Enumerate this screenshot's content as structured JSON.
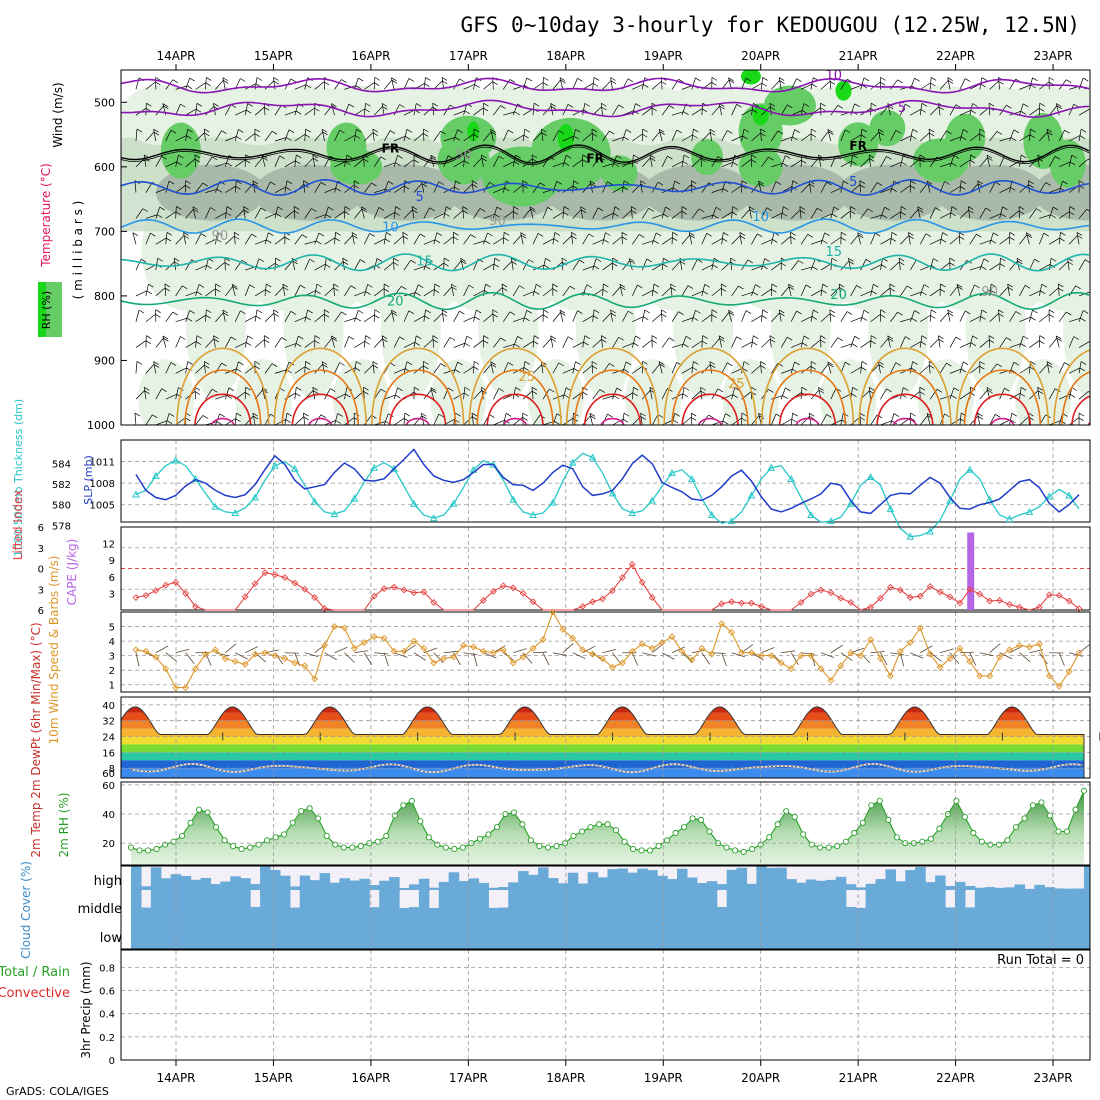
{
  "title": "GFS 0~10day 3-hourly for KEDOUGOU (12.25W, 12.5N)",
  "credit": "GrADS: COLA/IGES",
  "run_total_label": "Run Total = 0",
  "dates": [
    "14APR",
    "15APR",
    "16APR",
    "17APR",
    "18APR",
    "19APR",
    "20APR",
    "21APR",
    "22APR",
    "23APR"
  ],
  "colors": {
    "frame": "#000000",
    "grid": "#9a9a9a",
    "rh_light": "#e6f2e4",
    "rh_mid": "#c3d9c2",
    "rh_dark": "#a9b9aa",
    "rh_green": "#66cc66",
    "rh_bright": "#18d818",
    "wind_purple": "#8a14b4",
    "temp_blue1": "#1e50d2",
    "temp_blue2": "#2896e6",
    "temp_teal": "#1eb4aa",
    "temp_green": "#14aa78",
    "temp_gold": "#dca032",
    "temp_orange": "#e67814",
    "temp_red": "#dc1e1e",
    "temp_magenta": "#d21e82",
    "slp": "#1e3cc8",
    "thickness": "#28c8c8",
    "lifted_index": "#e64646",
    "cape": "#b464e6",
    "wind10m": "#dc9628",
    "barb": "#5a4632",
    "rh2m": "#28a028",
    "cloud": "#6aaad8",
    "precip_conv": "#e02828",
    "precip_total": "#28a028"
  },
  "chart_data": [
    {
      "panel": "upper_air",
      "type": "heatmap",
      "ylabel_wind": "Wind (m/s)",
      "ylabel_temp": "Temperature (°C)",
      "ylabel_rh": "RH (%)",
      "ylabel_pressure": "( m i l l i b a r s )",
      "yticks": [
        500,
        600,
        700,
        800,
        900,
        1000
      ],
      "ylim": [
        450,
        1000
      ],
      "contour_labels": [
        {
          "text": "10",
          "day": 6.75,
          "p": 465
        },
        {
          "text": "5",
          "day": 7.45,
          "p": 515
        },
        {
          "text": "FR",
          "day": 2.2,
          "p": 578
        },
        {
          "text": "FR",
          "day": 4.3,
          "p": 593
        },
        {
          "text": "FR",
          "day": 7.0,
          "p": 574
        },
        {
          "text": "5",
          "day": 2.5,
          "p": 653
        },
        {
          "text": "5",
          "day": 6.95,
          "p": 630
        },
        {
          "text": "10",
          "day": 2.2,
          "p": 700
        },
        {
          "text": "10",
          "day": 6.0,
          "p": 684
        },
        {
          "text": "15",
          "day": 2.55,
          "p": 753
        },
        {
          "text": "15",
          "day": 6.75,
          "p": 738
        },
        {
          "text": "20",
          "day": 2.25,
          "p": 815
        },
        {
          "text": "20",
          "day": 6.8,
          "p": 805
        },
        {
          "text": "25",
          "day": 3.6,
          "p": 932
        },
        {
          "text": "25",
          "day": 5.75,
          "p": 943
        },
        {
          "text": "50",
          "day": 2.95,
          "p": 589
        },
        {
          "text": "90",
          "day": 0.45,
          "p": 713
        },
        {
          "text": "90",
          "day": 3.3,
          "p": 690
        },
        {
          "text": "90",
          "day": 8.35,
          "p": 800
        }
      ]
    },
    {
      "panel": "slp_thickness",
      "type": "line",
      "ylabel_left": "1000-500mb Thickness (dm)",
      "ylabel_right": "SLP (mb)",
      "left_ticks": [
        578,
        580,
        582,
        584
      ],
      "right_ticks": [
        1005,
        1008,
        1011
      ],
      "ylim": [
        1002.6,
        1014.0
      ],
      "slp": [
        1009.2,
        1007.0,
        1006.0,
        1005.7,
        1006.3,
        1007.6,
        1008.5,
        1008.0,
        1007.0,
        1006.3,
        1006.0,
        1006.4,
        1007.8,
        1009.9,
        1011.8,
        1010.6,
        1008.4,
        1007.2,
        1007.5,
        1007.8,
        1009.5,
        1010.8,
        1010.0,
        1008.4,
        1008.3,
        1008.6,
        1010.0,
        1011.3,
        1012.7,
        1010.6,
        1009.0,
        1008.4,
        1008.1,
        1008.5,
        1009.5,
        1010.6,
        1010.6,
        1008.8,
        1007.8,
        1007.7,
        1007.0,
        1008.0,
        1009.5,
        1010.5,
        1010.0,
        1007.5,
        1006.3,
        1006.5,
        1007.0,
        1008.6,
        1010.7,
        1011.9,
        1010.7,
        1008.1,
        1007.4,
        1006.8,
        1005.8,
        1005.6,
        1006.3,
        1007.5,
        1009.0,
        1009.8,
        1008.3,
        1006.1,
        1004.4,
        1004.0,
        1004.5,
        1005.2,
        1005.8,
        1006.5,
        1008.0,
        1007.7,
        1005.6,
        1004.0,
        1003.8,
        1005.0,
        1006.3,
        1006.6,
        1006.5,
        1007.7,
        1008.8,
        1008.0,
        1006.0,
        1004.5,
        1004.4,
        1005.0,
        1005.3,
        1005.8,
        1007.0,
        1008.2,
        1008.5,
        1007.4,
        1005.2,
        1004.0,
        1005.0,
        1006.4
      ],
      "thickness": [
        581.0,
        581.4,
        582.8,
        583.8,
        584.3,
        583.8,
        582.5,
        581.1,
        579.8,
        579.3,
        579.2,
        579.7,
        580.7,
        582.4,
        583.8,
        584.2,
        583.5,
        581.9,
        580.3,
        579.3,
        579.1,
        579.4,
        580.6,
        582.2,
        583.6,
        584.1,
        583.5,
        581.8,
        580.1,
        579.0,
        578.7,
        579.0,
        580.1,
        581.7,
        583.4,
        584.3,
        583.9,
        582.4,
        580.5,
        579.3,
        579.0,
        579.2,
        580.2,
        582.3,
        584.1,
        585.0,
        584.6,
        583.1,
        581.1,
        579.6,
        579.2,
        579.4,
        580.4,
        581.8,
        583.1,
        583.4,
        582.5,
        580.6,
        579.0,
        578.2,
        578.4,
        579.3,
        580.9,
        582.5,
        583.6,
        583.8,
        582.5,
        580.7,
        579.0,
        578.3,
        578.4,
        578.8,
        580.1,
        581.9,
        582.7,
        581.9,
        579.6,
        577.7,
        576.9,
        577.0,
        577.4,
        578.5,
        580.4,
        582.5,
        583.4,
        582.5,
        580.5,
        579.0,
        578.6,
        579.0,
        579.3,
        579.8,
        580.8,
        581.5,
        580.9,
        579.6
      ]
    },
    {
      "panel": "cape_li",
      "type": "line",
      "ylabel_left": "Lifted Index",
      "ylabel_right": "CAPE (J/kg)",
      "left_ticks": [
        "6",
        "3",
        "0",
        "3",
        "6"
      ],
      "right_ticks": [
        3,
        6,
        9,
        12
      ],
      "ylim": [
        -6,
        6
      ],
      "lifted_index": [
        4.2,
        3.9,
        3.2,
        2.4,
        2.0,
        3.6,
        5.5,
        6,
        6,
        6,
        6,
        4.1,
        2.2,
        0.6,
        0.9,
        1.3,
        2.1,
        3.0,
        4.2,
        5.8,
        6,
        6,
        6,
        6,
        4.0,
        2.9,
        2.7,
        3.1,
        3.5,
        3.4,
        4.9,
        6,
        6,
        6,
        6,
        4.6,
        3.3,
        2.5,
        2.8,
        3.6,
        4.8,
        6,
        6,
        6,
        6,
        5.5,
        4.8,
        4.4,
        3.2,
        1.3,
        -0.6,
        2.0,
        4.2,
        6,
        6,
        6,
        6,
        6,
        6,
        5.1,
        4.8,
        5.0,
        5.0,
        5.5,
        6,
        6,
        6,
        4.9,
        3.7,
        3.1,
        3.5,
        4.3,
        4.9,
        6,
        5.6,
        4.3,
        2.7,
        3.1,
        4.2,
        4.0,
        2.6,
        3.4,
        4.1,
        5.0,
        3.0,
        3.7,
        4.7,
        4.6,
        5.2,
        5.6,
        6,
        5.6,
        3.8,
        3.9,
        4.7,
        5.8
      ],
      "cape_day": 8.15,
      "cape_value": 14
    },
    {
      "panel": "wind10m",
      "type": "line",
      "ylabel_left": "10m Wind Speed & Barbs (m/s)",
      "yticks": [
        1,
        2,
        3,
        4,
        5
      ],
      "ylim": [
        0.5,
        6
      ],
      "speed": [
        3.4,
        3.3,
        2.9,
        2.1,
        0.8,
        0.8,
        2.1,
        3.1,
        3.4,
        2.8,
        2.6,
        2.4,
        3.1,
        3.2,
        3.0,
        2.8,
        2.5,
        2.3,
        1.4,
        3.7,
        5.0,
        4.9,
        3.5,
        3.9,
        4.3,
        4.2,
        3.3,
        3.3,
        4.0,
        3.5,
        2.5,
        2.8,
        2.9,
        3.7,
        3.6,
        3.3,
        3.2,
        3.4,
        2.5,
        2.9,
        3.5,
        4.1,
        6.0,
        4.8,
        4.2,
        3.4,
        3.1,
        2.8,
        2.2,
        2.5,
        3.3,
        3.8,
        3.5,
        3.9,
        4.3,
        3.3,
        2.7,
        3.5,
        3.1,
        5.2,
        4.6,
        3.2,
        3.2,
        3.0,
        3.0,
        2.5,
        2.1,
        3.0,
        3.0,
        2.1,
        1.3,
        2.3,
        3.2,
        3.0,
        4.1,
        2.8,
        1.6,
        3.3,
        3.9,
        4.9,
        3.1,
        2.2,
        2.8,
        3.5,
        2.6,
        1.6,
        1.6,
        2.9,
        3.4,
        3.7,
        3.6,
        3.8,
        1.6,
        0.9,
        1.9,
        3.2
      ]
    },
    {
      "panel": "temperature",
      "type": "area",
      "ylabel_left": "2m Temp 2m DewPt (6hr Min/Max) (°C)",
      "yticks": [
        40,
        32,
        24,
        16,
        8
      ],
      "ylim": [
        3,
        44
      ],
      "temp_range": [
        25,
        39
      ],
      "temp_peak_time": 0.6,
      "dewpoint_range": [
        6.5,
        9.5
      ]
    },
    {
      "panel": "rh2m",
      "type": "area",
      "ylabel_left": "2m RH (%)",
      "yticks": [
        20,
        40,
        60
      ],
      "ylim": [
        5,
        62
      ],
      "values": [
        17,
        15,
        15,
        16,
        19,
        21,
        25,
        34,
        43,
        41,
        31,
        22,
        18,
        16,
        17,
        19,
        22,
        24,
        26,
        34,
        42,
        44,
        37,
        25,
        19,
        17,
        17,
        18,
        20,
        21,
        25,
        39,
        46,
        49,
        35,
        24,
        19,
        17,
        16,
        17,
        20,
        23,
        26,
        31,
        40,
        41,
        33,
        22,
        18,
        17,
        18,
        20,
        25,
        28,
        31,
        33,
        33,
        29,
        21,
        16,
        15,
        15,
        18,
        22,
        27,
        31,
        37,
        36,
        28,
        20,
        17,
        15,
        14,
        16,
        19,
        24,
        33,
        42,
        38,
        26,
        19,
        17,
        17,
        18,
        21,
        27,
        34,
        46,
        49,
        36,
        24,
        20,
        20,
        21,
        23,
        30,
        40,
        49,
        38,
        27,
        21,
        19,
        19,
        22,
        31,
        37,
        46,
        48,
        39,
        28,
        28,
        43,
        56
      ]
    },
    {
      "panel": "cloud_cover",
      "type": "bar",
      "ylabel_left": "Cloud Cover (%)",
      "levels": [
        "high",
        "middle",
        "low"
      ]
    },
    {
      "panel": "precip",
      "type": "bar",
      "ylabel_total": "Total / Rain",
      "ylabel_conv": "Convective",
      "ylabel_left": "3hr Precip (mm)",
      "yticks": [
        "0",
        "0.2",
        "0.4",
        "0.6",
        "0.8"
      ],
      "ylim": [
        0,
        0.95
      ],
      "values": []
    }
  ]
}
